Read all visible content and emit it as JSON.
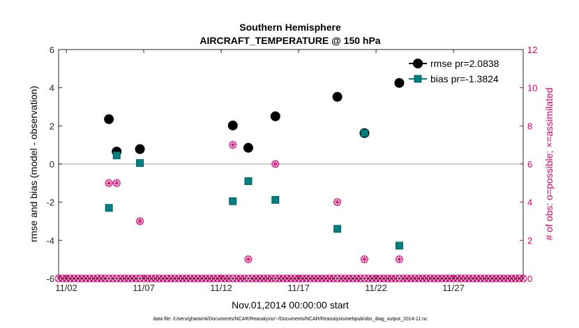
{
  "chart_data": {
    "type": "scatter",
    "title": "Southern Hemisphere",
    "subtitle": "AIRCRAFT_TEMPERATURE @ 150 hPa",
    "xlabel": "Nov.01,2014 00:00:00 start",
    "ylabel": "rmse and bias (model - observation)",
    "y2label": "# of obs: o=possible; ×=assimilated",
    "xlim": [
      0.5,
      30.5
    ],
    "ylim": [
      -6,
      6
    ],
    "y2lim": [
      0,
      12
    ],
    "x_ticks": [
      1,
      6,
      11,
      16,
      21,
      26
    ],
    "x_tick_labels": [
      "11/02",
      "11/07",
      "11/12",
      "11/17",
      "11/22",
      "11/27"
    ],
    "y_ticks": [
      -6,
      -4,
      -2,
      0,
      2,
      4,
      6
    ],
    "y_tick_labels": [
      "-6",
      "-4",
      "-2",
      "0",
      "2",
      "4",
      "6"
    ],
    "y2_ticks": [
      0,
      2,
      4,
      6,
      8,
      10,
      12
    ],
    "y2_tick_labels": [
      "0",
      "2",
      "4",
      "6",
      "8",
      "10",
      "12"
    ],
    "series": [
      {
        "name": "rmse",
        "legend_label": "rmse pr=2.0838",
        "color": "#000000",
        "marker": "circle",
        "points": [
          {
            "x": 3.75,
            "y": 2.35
          },
          {
            "x": 4.25,
            "y": 0.65
          },
          {
            "x": 5.75,
            "y": 0.78
          },
          {
            "x": 11.75,
            "y": 2.02
          },
          {
            "x": 12.75,
            "y": 0.85
          },
          {
            "x": 14.5,
            "y": 2.5
          },
          {
            "x": 18.5,
            "y": 3.52
          },
          {
            "x": 20.25,
            "y": 1.62
          },
          {
            "x": 22.5,
            "y": 4.25
          }
        ]
      },
      {
        "name": "bias",
        "legend_label": "bias pr=-1.3824",
        "color": "#008080",
        "marker": "square",
        "points": [
          {
            "x": 3.75,
            "y": -2.3
          },
          {
            "x": 4.25,
            "y": 0.45
          },
          {
            "x": 5.75,
            "y": 0.05
          },
          {
            "x": 11.75,
            "y": -1.95
          },
          {
            "x": 12.75,
            "y": -0.9
          },
          {
            "x": 14.5,
            "y": -1.88
          },
          {
            "x": 18.5,
            "y": -3.4
          },
          {
            "x": 20.25,
            "y": 1.62
          },
          {
            "x": 22.5,
            "y": -4.28
          }
        ]
      },
      {
        "name": "obs_possible",
        "color": "#d6006e",
        "marker": "circle-open",
        "axis": "right",
        "points": [
          {
            "x": 3.75,
            "y": 5
          },
          {
            "x": 4.25,
            "y": 5
          },
          {
            "x": 5.75,
            "y": 3
          },
          {
            "x": 11.75,
            "y": 7
          },
          {
            "x": 12.75,
            "y": 1
          },
          {
            "x": 14.5,
            "y": 6
          },
          {
            "x": 18.5,
            "y": 4
          },
          {
            "x": 20.25,
            "y": 1
          },
          {
            "x": 22.5,
            "y": 1
          }
        ]
      },
      {
        "name": "obs_assimilated",
        "color": "#d6006e",
        "marker": "cross",
        "axis": "right",
        "points": [
          {
            "x": 3.75,
            "y": 5
          },
          {
            "x": 4.25,
            "y": 5
          },
          {
            "x": 5.75,
            "y": 3
          },
          {
            "x": 11.75,
            "y": 7
          },
          {
            "x": 12.75,
            "y": 1
          },
          {
            "x": 14.5,
            "y": 6
          },
          {
            "x": 18.5,
            "y": 4
          },
          {
            "x": 20.25,
            "y": 1
          },
          {
            "x": 22.5,
            "y": 1
          }
        ]
      }
    ],
    "zero_count_x_range": [
      0.5,
      30.5
    ],
    "zero_count_step": 0.25,
    "zero_line": 0,
    "right_axis_color": "#d6006e",
    "footnote": "data file: /Users/gharamti/Documents/NCAR/Reanalysis/~/Documents/NCAR/Reanalysis/webpub/obs_diag_output_2014-11.nc"
  }
}
